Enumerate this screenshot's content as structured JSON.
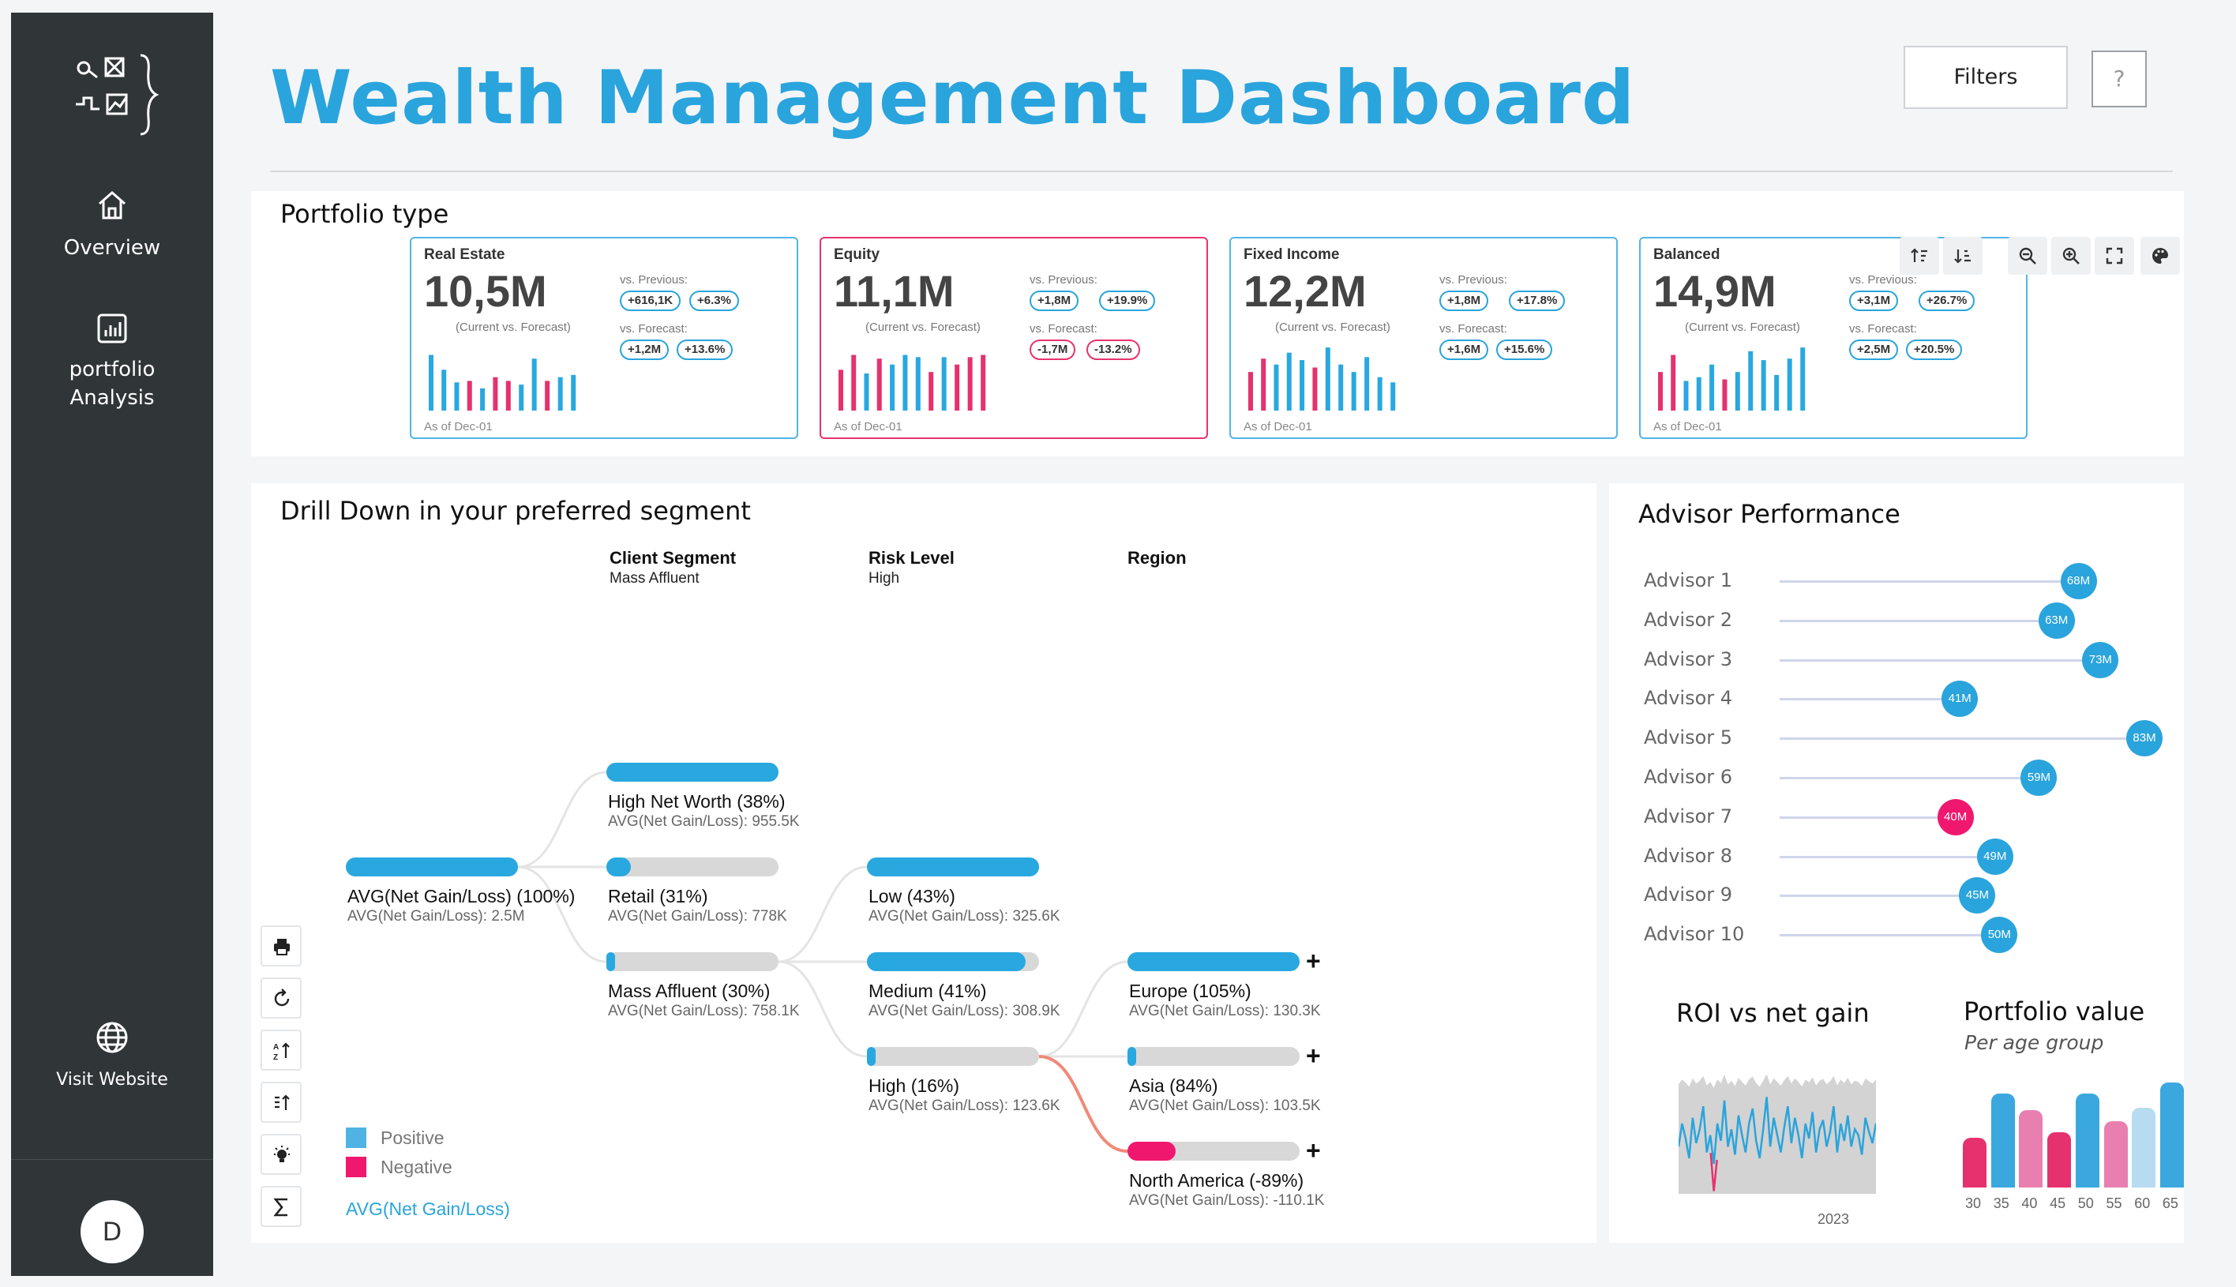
{
  "sidebar": {
    "overview_label": "Overview",
    "portfolio_label_1": "portfolio",
    "portfolio_label_2": "Analysis",
    "visit_label": "Visit Website",
    "avatar_initial": "D"
  },
  "header": {
    "title": "Wealth Management Dashboard",
    "filters_label": "Filters",
    "help_label": "?"
  },
  "portfolio_type": {
    "title": "Portfolio type",
    "cards": [
      {
        "name": "Real Estate",
        "value": "10,5M",
        "sub": "(Current vs. Forecast)",
        "prev_label": "vs. Previous:",
        "prev_abs": "+616,1K",
        "prev_pct": "+6.3%",
        "fc_label": "vs. Forecast:",
        "fc_abs": "+1,2M",
        "fc_pct": "+13.6%",
        "as_of": "As of Dec-01",
        "status": "positive",
        "bars": [
          {
            "v": 0.75,
            "c": "b"
          },
          {
            "v": 0.55,
            "c": "b"
          },
          {
            "v": 0.38,
            "c": "b"
          },
          {
            "v": 0.4,
            "c": "p"
          },
          {
            "v": 0.3,
            "c": "b"
          },
          {
            "v": 0.45,
            "c": "p"
          },
          {
            "v": 0.4,
            "c": "p"
          },
          {
            "v": 0.35,
            "c": "b"
          },
          {
            "v": 0.7,
            "c": "b"
          },
          {
            "v": 0.4,
            "c": "p"
          },
          {
            "v": 0.45,
            "c": "b"
          },
          {
            "v": 0.48,
            "c": "b"
          }
        ]
      },
      {
        "name": "Equity",
        "value": "11,1M",
        "sub": "(Current vs. Forecast)",
        "prev_label": "vs. Previous:",
        "prev_abs": "+1,8M",
        "prev_pct": "+19.9%",
        "fc_label": "vs. Forecast:",
        "fc_abs": "-1,7M",
        "fc_pct": "-13.2%",
        "as_of": "As of Dec-01",
        "status": "negative",
        "bars": [
          {
            "v": 0.55,
            "c": "p"
          },
          {
            "v": 0.75,
            "c": "p"
          },
          {
            "v": 0.5,
            "c": "b"
          },
          {
            "v": 0.7,
            "c": "p"
          },
          {
            "v": 0.62,
            "c": "b"
          },
          {
            "v": 0.75,
            "c": "b"
          },
          {
            "v": 0.72,
            "c": "b"
          },
          {
            "v": 0.52,
            "c": "p"
          },
          {
            "v": 0.72,
            "c": "b"
          },
          {
            "v": 0.62,
            "c": "p"
          },
          {
            "v": 0.72,
            "c": "p"
          },
          {
            "v": 0.75,
            "c": "p"
          }
        ]
      },
      {
        "name": "Fixed Income",
        "value": "12,2M",
        "sub": "(Current vs. Forecast)",
        "prev_label": "vs. Previous:",
        "prev_abs": "+1,8M",
        "prev_pct": "+17.8%",
        "fc_label": "vs. Forecast:",
        "fc_abs": "+1,6M",
        "fc_pct": "+15.6%",
        "as_of": "As of Dec-01",
        "status": "positive",
        "bars": [
          {
            "v": 0.52,
            "c": "p"
          },
          {
            "v": 0.7,
            "c": "p"
          },
          {
            "v": 0.62,
            "c": "b"
          },
          {
            "v": 0.78,
            "c": "b"
          },
          {
            "v": 0.68,
            "c": "b"
          },
          {
            "v": 0.58,
            "c": "p"
          },
          {
            "v": 0.85,
            "c": "b"
          },
          {
            "v": 0.62,
            "c": "b"
          },
          {
            "v": 0.52,
            "c": "b"
          },
          {
            "v": 0.72,
            "c": "b"
          },
          {
            "v": 0.45,
            "c": "b"
          },
          {
            "v": 0.38,
            "c": "b"
          }
        ]
      },
      {
        "name": "Balanced",
        "value": "14,9M",
        "sub": "(Current vs. Forecast)",
        "prev_label": "vs. Previous:",
        "prev_abs": "+3,1M",
        "prev_pct": "+26.7%",
        "fc_label": "vs. Forecast:",
        "fc_abs": "+2,5M",
        "fc_pct": "+20.5%",
        "as_of": "As of Dec-01",
        "status": "positive",
        "bars": [
          {
            "v": 0.52,
            "c": "p"
          },
          {
            "v": 0.75,
            "c": "p"
          },
          {
            "v": 0.4,
            "c": "b"
          },
          {
            "v": 0.45,
            "c": "b"
          },
          {
            "v": 0.62,
            "c": "b"
          },
          {
            "v": 0.42,
            "c": "p"
          },
          {
            "v": 0.52,
            "c": "b"
          },
          {
            "v": 0.8,
            "c": "b"
          },
          {
            "v": 0.68,
            "c": "b"
          },
          {
            "v": 0.48,
            "c": "b"
          },
          {
            "v": 0.7,
            "c": "b"
          },
          {
            "v": 0.85,
            "c": "b"
          }
        ]
      }
    ]
  },
  "drilldown": {
    "title": "Drill Down in your preferred segment",
    "columns": [
      {
        "head": "Client Segment",
        "sub": "Mass Affluent"
      },
      {
        "head": "Risk Level",
        "sub": "High"
      },
      {
        "head": "Region",
        "sub": ""
      }
    ],
    "root": {
      "label": "AVG(Net Gain/Loss) (100%)",
      "value": "AVG(Net Gain/Loss): 2.5M",
      "fill": 1.0
    },
    "segments": [
      {
        "label": "High Net Worth (38%)",
        "value": "AVG(Net Gain/Loss): 955.5K",
        "fill": 1.0
      },
      {
        "label": "Retail (31%)",
        "value": "AVG(Net Gain/Loss): 778K",
        "fill": 0.14
      },
      {
        "label": "Mass Affluent (30%)",
        "value": "AVG(Net Gain/Loss): 758.1K",
        "fill": 0.05
      }
    ],
    "risk": [
      {
        "label": "Low (43%)",
        "value": "AVG(Net Gain/Loss): 325.6K",
        "fill": 1.0
      },
      {
        "label": "Medium (41%)",
        "value": "AVG(Net Gain/Loss): 308.9K",
        "fill": 0.92
      },
      {
        "label": "High (16%)",
        "value": "AVG(Net Gain/Loss): 123.6K",
        "fill": 0.05
      }
    ],
    "region": [
      {
        "label": "Europe (105%)",
        "value": "AVG(Net Gain/Loss): 130.3K",
        "fill": 1.0,
        "neg": false
      },
      {
        "label": "Asia (84%)",
        "value": "AVG(Net Gain/Loss): 103.5K",
        "fill": 0.05,
        "neg": false
      },
      {
        "label": "North America (-89%)",
        "value": "AVG(Net Gain/Loss): -110.1K",
        "fill": 0.28,
        "neg": true
      }
    ],
    "plus_symbol": "+",
    "legend_positive": "Positive",
    "legend_negative": "Negative",
    "measure_label": "AVG(Net Gain/Loss)"
  },
  "advisor": {
    "title": "Advisor Performance",
    "max": 83,
    "rows": [
      {
        "name": "Advisor 1",
        "value": 68,
        "label": "68M",
        "neg": false
      },
      {
        "name": "Advisor 2",
        "value": 63,
        "label": "63M",
        "neg": false
      },
      {
        "name": "Advisor 3",
        "value": 73,
        "label": "73M",
        "neg": false
      },
      {
        "name": "Advisor 4",
        "value": 41,
        "label": "41M",
        "neg": false
      },
      {
        "name": "Advisor 5",
        "value": 83,
        "label": "83M",
        "neg": false
      },
      {
        "name": "Advisor 6",
        "value": 59,
        "label": "59M",
        "neg": false
      },
      {
        "name": "Advisor 7",
        "value": 40,
        "label": "40M",
        "neg": true
      },
      {
        "name": "Advisor 8",
        "value": 49,
        "label": "49M",
        "neg": false
      },
      {
        "name": "Advisor 9",
        "value": 45,
        "label": "45M",
        "neg": false
      },
      {
        "name": "Advisor 10",
        "value": 50,
        "label": "50M",
        "neg": false
      }
    ]
  },
  "roi": {
    "title": "ROI vs net gain",
    "x_label": "2023",
    "series": [
      0.35,
      0.55,
      0.42,
      0.25,
      0.6,
      0.38,
      0.5,
      0.7,
      0.3,
      0.45,
      0.2,
      0.55,
      0.4,
      0.75,
      0.35,
      0.5,
      0.28,
      0.62,
      0.45,
      0.3,
      0.55,
      0.68,
      0.4,
      0.25,
      0.5,
      0.78,
      0.35,
      0.6,
      0.45,
      0.3,
      0.52,
      0.7,
      0.38,
      0.6,
      0.45,
      0.25,
      0.55,
      0.42,
      0.65,
      0.3,
      0.5,
      0.58,
      0.35,
      0.48,
      0.7,
      0.3,
      0.55,
      0.4,
      0.62,
      0.35,
      0.5,
      0.45,
      0.28,
      0.6,
      0.48,
      0.38,
      0.55
    ],
    "dip_index": 10
  },
  "portfolio_value": {
    "title": "Portfolio value",
    "subtitle": "Per age group",
    "categories": [
      "30",
      "35",
      "40",
      "45",
      "50",
      "55",
      "60",
      "65"
    ],
    "values": [
      0.45,
      0.85,
      0.7,
      0.5,
      0.85,
      0.6,
      0.72,
      0.95
    ],
    "colors": [
      "#e5326e",
      "#3aa8de",
      "#e87fb0",
      "#e5326e",
      "#3aa8de",
      "#e87fb0",
      "#b7dbf0",
      "#3aa8de"
    ]
  }
}
